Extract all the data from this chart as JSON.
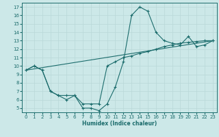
{
  "xlabel": "Humidex (Indice chaleur)",
  "bg_color": "#cce8e8",
  "grid_color": "#b8d8d8",
  "line_color": "#1a6b6b",
  "line1_x": [
    0,
    1,
    2,
    3,
    4,
    5,
    6,
    7,
    8,
    9,
    10,
    11,
    12,
    13,
    14,
    15,
    16,
    17,
    18,
    19,
    20,
    21,
    22,
    23
  ],
  "line1_y": [
    9.5,
    10.0,
    9.5,
    7.0,
    6.5,
    6.5,
    6.5,
    5.0,
    5.0,
    4.7,
    5.5,
    7.5,
    10.5,
    16.0,
    17.0,
    16.5,
    14.0,
    13.0,
    12.7,
    12.5,
    13.5,
    12.3,
    12.5,
    13.0
  ],
  "line2_x": [
    0,
    1,
    2,
    3,
    4,
    5,
    6,
    7,
    8,
    9,
    10,
    11,
    12,
    13,
    14,
    15,
    16,
    17,
    18,
    19,
    20,
    21,
    22,
    23
  ],
  "line2_y": [
    9.5,
    10.0,
    9.5,
    7.0,
    6.5,
    6.0,
    6.5,
    5.5,
    5.5,
    5.5,
    10.0,
    10.5,
    11.0,
    11.2,
    11.5,
    11.7,
    12.0,
    12.3,
    12.5,
    12.7,
    12.8,
    12.9,
    13.0,
    13.0
  ],
  "line3_x": [
    0,
    23
  ],
  "line3_y": [
    9.5,
    13.0
  ],
  "xlim": [
    -0.5,
    23.5
  ],
  "ylim": [
    4.5,
    17.5
  ],
  "xticks": [
    0,
    1,
    2,
    3,
    4,
    5,
    6,
    7,
    8,
    9,
    10,
    11,
    12,
    13,
    14,
    15,
    16,
    17,
    18,
    19,
    20,
    21,
    22,
    23
  ],
  "yticks": [
    5,
    6,
    7,
    8,
    9,
    10,
    11,
    12,
    13,
    14,
    15,
    16,
    17
  ]
}
